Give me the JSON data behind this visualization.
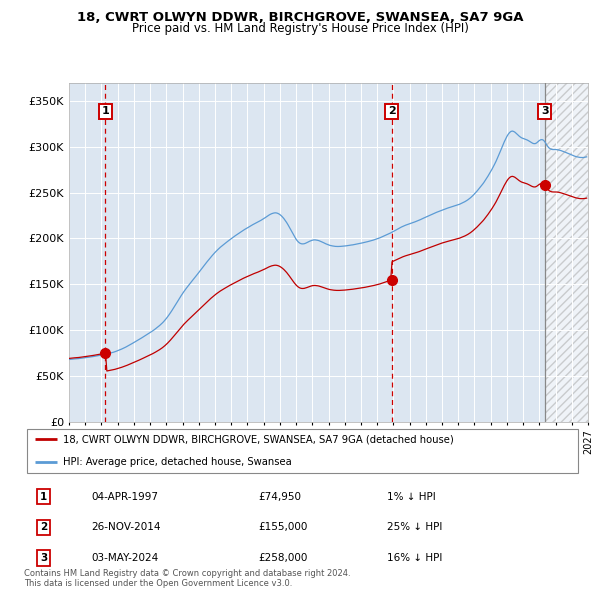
{
  "title1": "18, CWRT OLWYN DDWR, BIRCHGROVE, SWANSEA, SA7 9GA",
  "title2": "Price paid vs. HM Land Registry's House Price Index (HPI)",
  "xlim": [
    1995.0,
    2027.0
  ],
  "ylim": [
    0,
    370000
  ],
  "yticks": [
    0,
    50000,
    100000,
    150000,
    200000,
    250000,
    300000,
    350000
  ],
  "ytick_labels": [
    "£0",
    "£50K",
    "£100K",
    "£150K",
    "£200K",
    "£250K",
    "£300K",
    "£350K"
  ],
  "bg_color": "#dce6f1",
  "hatch_start": 2024.42,
  "sales": [
    {
      "label": "1",
      "date_str": "04-APR-1997",
      "year": 1997.25,
      "price": 74950,
      "pct": "1%",
      "dir": "↓"
    },
    {
      "label": "2",
      "date_str": "26-NOV-2014",
      "year": 2014.9,
      "price": 155000,
      "pct": "25%",
      "dir": "↓"
    },
    {
      "label": "3",
      "date_str": "03-MAY-2024",
      "year": 2024.33,
      "price": 258000,
      "pct": "16%",
      "dir": "↓"
    }
  ],
  "legend_line1": "18, CWRT OLWYN DDWR, BIRCHGROVE, SWANSEA, SA7 9GA (detached house)",
  "legend_line2": "HPI: Average price, detached house, Swansea",
  "hpi_color": "#5b9bd5",
  "price_color": "#c00000",
  "footnote": "Contains HM Land Registry data © Crown copyright and database right 2024.\nThis data is licensed under the Open Government Licence v3.0."
}
